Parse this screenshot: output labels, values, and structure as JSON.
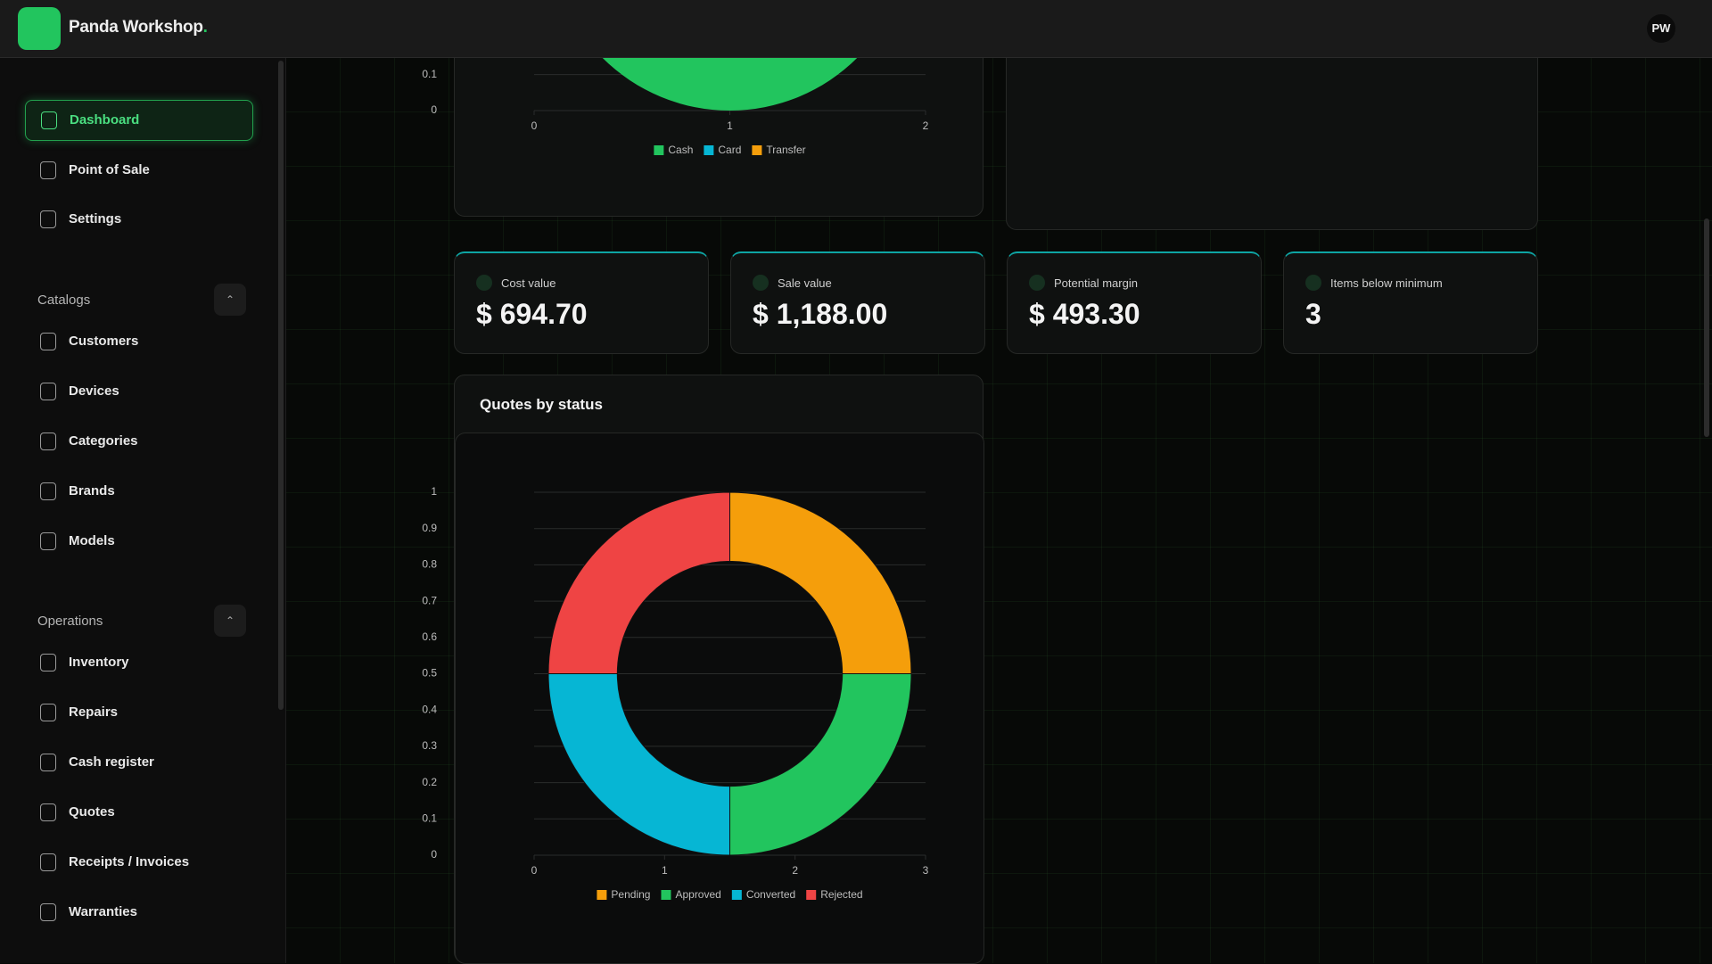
{
  "header": {
    "brand": "Panda Workshop",
    "brand_dot": ".",
    "avatar": "PW"
  },
  "sidebar": {
    "main": [
      "Dashboard",
      "Point of Sale",
      "Settings"
    ],
    "sections": [
      {
        "title": "Catalogs",
        "items": [
          "Customers",
          "Devices",
          "Categories",
          "Brands",
          "Models"
        ]
      },
      {
        "title": "Operations",
        "items": [
          "Inventory",
          "Repairs",
          "Cash register",
          "Quotes",
          "Receipts / Invoices",
          "Warranties"
        ]
      }
    ]
  },
  "stats": [
    {
      "label": "Cost value",
      "value": "$ 694.70"
    },
    {
      "label": "Sale value",
      "value": "$ 1,188.00"
    },
    {
      "label": "Potential margin",
      "value": "$ 493.30"
    },
    {
      "label": "Items below minimum",
      "value": "3"
    }
  ],
  "charts": [
    {
      "type": "pie",
      "categories": [
        "Cash",
        "Card",
        "Transfer"
      ],
      "values": [
        1,
        0,
        0
      ],
      "colors": [
        "#22c55e",
        "#06b6d4",
        "#f59e0b"
      ],
      "xlim": [
        0,
        2
      ],
      "xticks": [
        0,
        1,
        2
      ],
      "ylim": [
        0,
        1
      ],
      "yticks": [
        0,
        0.1
      ],
      "grid": true
    },
    {
      "type": "doughnut",
      "title": "Quotes by status",
      "categories": [
        "Pending",
        "Approved",
        "Converted",
        "Rejected"
      ],
      "values": [
        1,
        1,
        1,
        1
      ],
      "colors": [
        "#f59e0b",
        "#22c55e",
        "#06b6d4",
        "#ef4444"
      ],
      "xlim": [
        0,
        3
      ],
      "xticks": [
        0,
        1,
        2,
        3
      ],
      "ylim": [
        0,
        1
      ],
      "yticks": [
        0,
        0.1,
        0.2,
        0.3,
        0.4,
        0.5,
        0.6,
        0.7,
        0.8,
        0.9,
        1
      ],
      "grid": true
    }
  ]
}
